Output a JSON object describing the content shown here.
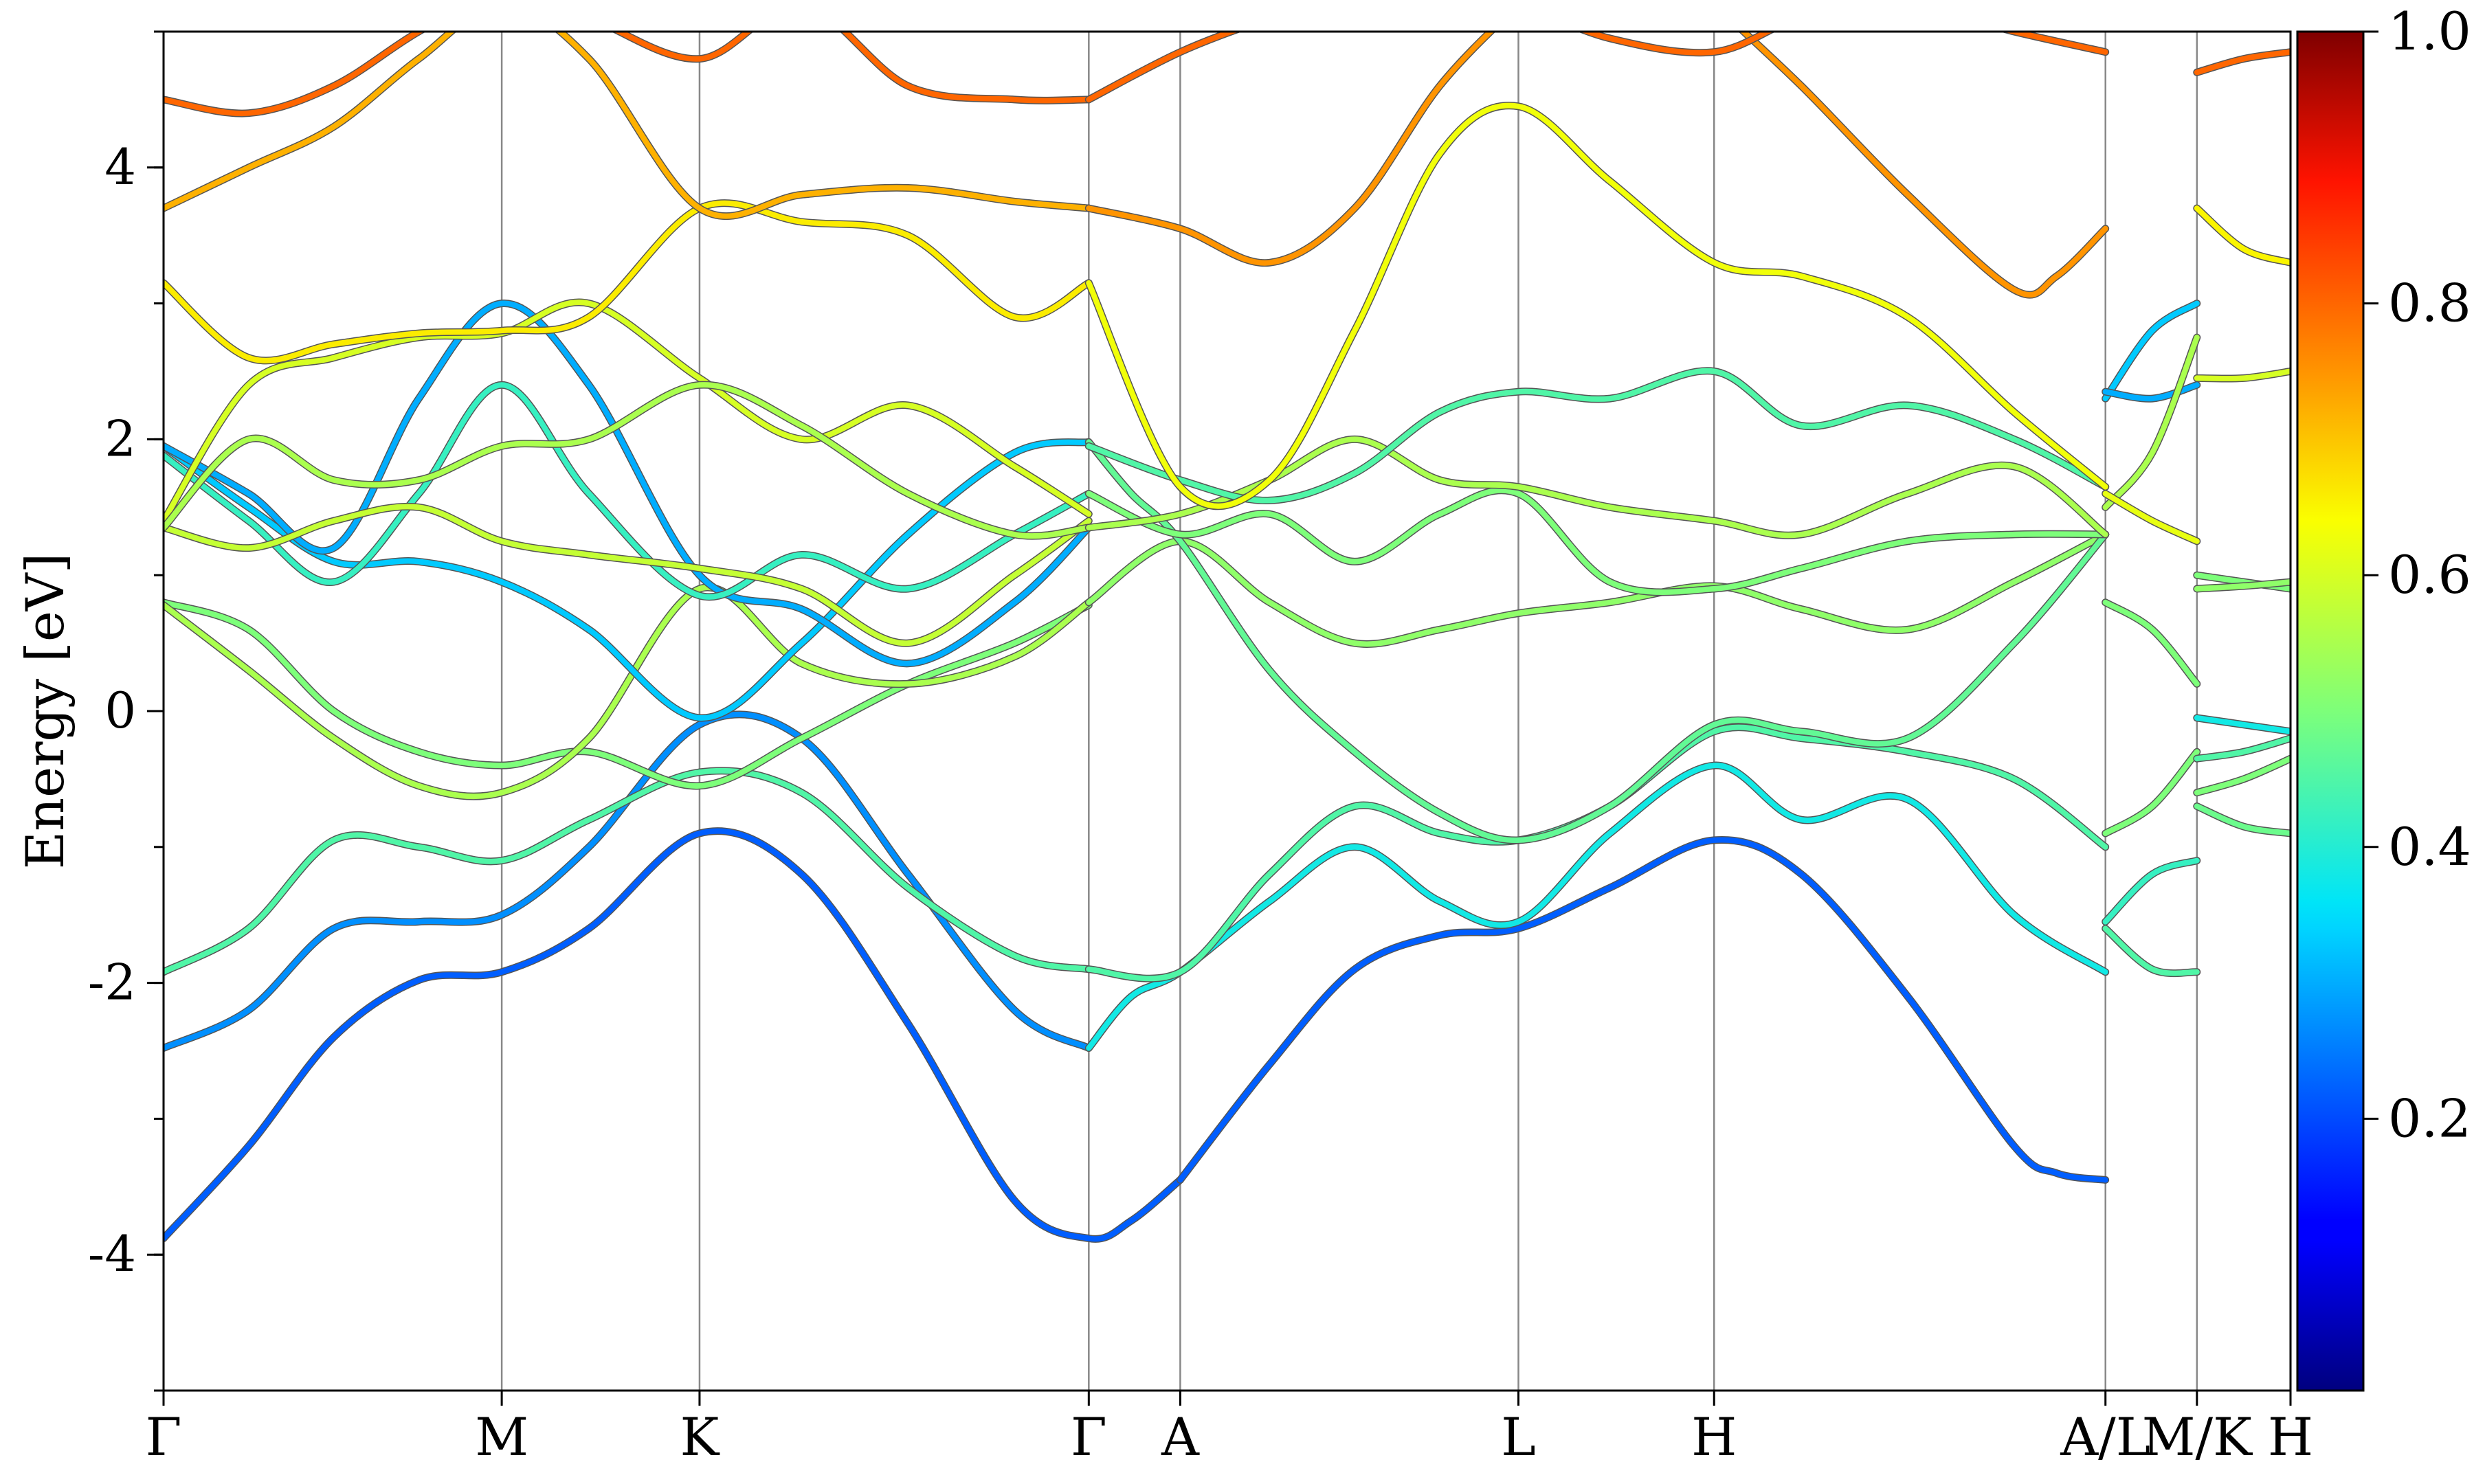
{
  "chart_data": {
    "type": "line",
    "title": "",
    "xlabel": "",
    "ylabel": "Energy [eV]",
    "ylim": [
      -5,
      5
    ],
    "yticks": [
      -4,
      -2,
      0,
      2,
      4
    ],
    "ytick_labels": [
      "-4",
      "-2",
      "0",
      "2",
      "4"
    ],
    "xlim": [
      0,
      100
    ],
    "kpoints": [
      {
        "label": "Γ",
        "x": 0
      },
      {
        "label": "M",
        "x": 15.9
      },
      {
        "label": "K",
        "x": 25.2
      },
      {
        "label": "Γ",
        "x": 43.5
      },
      {
        "label": "A",
        "x": 47.8
      },
      {
        "label": "L",
        "x": 63.7
      },
      {
        "label": "H",
        "x": 72.9
      },
      {
        "label": "A/L",
        "x": 91.3
      },
      {
        "label": "M/K",
        "x": 95.6
      },
      {
        "label": "H",
        "x": 100
      }
    ],
    "colorbar": {
      "min": 0.0,
      "max": 1.0,
      "ticks": [
        0.2,
        0.4,
        0.6,
        0.8,
        1.0
      ],
      "tick_labels": [
        "0.2",
        "0.4",
        "0.6",
        "0.8",
        "1.0"
      ],
      "colormap": "jet"
    },
    "grid": false,
    "series": [
      {
        "x": [
          0,
          4,
          8,
          12,
          15.9,
          20,
          25.2,
          30,
          35,
          40,
          43.5,
          45.5,
          47.8
        ],
        "y": [
          -3.88,
          -3.2,
          -2.4,
          -1.98,
          -1.92,
          -1.6,
          -0.9,
          -1.2,
          -2.3,
          -3.6,
          -3.88,
          -3.75,
          -3.45
        ],
        "c": 0.22
      },
      {
        "x": [
          47.8,
          52,
          56,
          60,
          63.7,
          68,
          72.9,
          77,
          82,
          87,
          89,
          91.3
        ],
        "y": [
          -3.45,
          -2.6,
          -1.9,
          -1.65,
          -1.6,
          -1.3,
          -0.95,
          -1.2,
          -2.1,
          -3.2,
          -3.4,
          -3.45
        ],
        "c": 0.22
      },
      {
        "x": [
          0,
          4,
          8,
          12,
          15.9,
          20,
          25.2,
          30,
          35,
          40,
          43.5
        ],
        "y": [
          -2.48,
          -2.2,
          -1.6,
          -1.55,
          -1.5,
          -1.0,
          -0.1,
          -0.2,
          -1.2,
          -2.2,
          -2.48
        ],
        "c": 0.27
      },
      {
        "x": [
          43.5,
          45.5,
          47.8,
          52,
          56,
          60,
          63.7,
          68,
          72.9,
          77,
          82,
          87,
          91.3
        ],
        "y": [
          -2.48,
          -2.1,
          -1.92,
          -1.4,
          -1.0,
          -1.4,
          -1.55,
          -0.9,
          -0.4,
          -0.8,
          -0.65,
          -1.5,
          -1.92
        ],
        "c": 0.38
      },
      {
        "x": [
          0,
          4,
          8,
          12,
          15.9,
          20,
          25.2,
          30,
          35,
          40,
          43.5
        ],
        "y": [
          -1.92,
          -1.6,
          -0.95,
          -1.0,
          -1.1,
          -0.8,
          -0.45,
          -0.6,
          -1.3,
          -1.8,
          -1.9
        ],
        "c": 0.45
      },
      {
        "x": [
          43.5,
          47.8,
          52,
          56,
          60,
          63.7,
          68,
          72.9,
          77,
          82,
          87,
          91.3
        ],
        "y": [
          -1.9,
          -1.92,
          -1.2,
          -0.7,
          -0.9,
          -0.95,
          -0.7,
          -0.15,
          -0.2,
          -0.3,
          -0.5,
          -1.0
        ],
        "c": 0.45
      },
      {
        "x": [
          0,
          4,
          8,
          12,
          15.9,
          20,
          25.2,
          30,
          35,
          40,
          43.5
        ],
        "y": [
          0.8,
          0.6,
          0.0,
          -0.3,
          -0.4,
          -0.3,
          -0.55,
          -0.2,
          0.2,
          0.5,
          0.78
        ],
        "c": 0.5
      },
      {
        "x": [
          0,
          4,
          8,
          12,
          15.9,
          20,
          25.2,
          30,
          35,
          40,
          43.5
        ],
        "y": [
          0.78,
          0.3,
          -0.2,
          -0.55,
          -0.6,
          -0.2,
          0.9,
          0.35,
          0.2,
          0.4,
          0.8
        ],
        "c": 0.55
      },
      {
        "x": [
          43.5,
          47.8,
          52,
          56,
          60,
          63.7,
          68,
          72.9,
          77,
          82,
          87,
          91.3
        ],
        "y": [
          0.8,
          1.25,
          0.8,
          0.5,
          0.6,
          0.72,
          0.8,
          0.92,
          0.75,
          0.6,
          0.95,
          1.3
        ],
        "c": 0.52
      },
      {
        "x": [
          0,
          4,
          8,
          12,
          15.9,
          20,
          25.2,
          30,
          35,
          40,
          43.5
        ],
        "y": [
          1.95,
          1.5,
          1.1,
          1.1,
          0.95,
          0.6,
          -0.05,
          0.5,
          1.3,
          1.9,
          1.98
        ],
        "c": 0.33
      },
      {
        "x": [
          43.5,
          45.5,
          47.8,
          52,
          56,
          60,
          63.7,
          68,
          72.9,
          77,
          82,
          87,
          91.3
        ],
        "y": [
          1.98,
          1.6,
          1.25,
          0.3,
          -0.3,
          -0.75,
          -0.95,
          -0.7,
          -0.1,
          -0.15,
          -0.2,
          0.5,
          1.3
        ],
        "c": 0.47
      },
      {
        "x": [
          0,
          4,
          8,
          12,
          15.9,
          20,
          25.2,
          30,
          35,
          40,
          43.5
        ],
        "y": [
          1.95,
          1.6,
          1.2,
          2.3,
          3.0,
          2.4,
          1.0,
          0.75,
          0.35,
          0.8,
          1.35
        ],
        "c": 0.3
      },
      {
        "x": [
          0,
          4,
          8,
          12,
          15.9,
          20,
          25.2,
          30,
          35,
          40,
          43.5
        ],
        "y": [
          1.88,
          1.4,
          0.95,
          1.6,
          2.4,
          1.6,
          0.85,
          1.15,
          0.9,
          1.3,
          1.6
        ],
        "c": 0.42
      },
      {
        "x": [
          43.5,
          47.8,
          52,
          56,
          60,
          63.7,
          68,
          72.9,
          77,
          82,
          87,
          91.3
        ],
        "y": [
          1.6,
          1.3,
          1.45,
          1.1,
          1.45,
          1.6,
          0.95,
          0.9,
          1.05,
          1.25,
          1.3,
          1.3
        ],
        "c": 0.5
      },
      {
        "x": [
          0,
          4,
          8,
          12,
          15.9,
          20,
          25.2,
          30,
          35,
          40,
          43.5
        ],
        "y": [
          1.35,
          1.2,
          1.4,
          1.5,
          1.25,
          1.15,
          1.05,
          0.9,
          0.5,
          1.0,
          1.4
        ],
        "c": 0.58
      },
      {
        "x": [
          0,
          4,
          8,
          12,
          15.9,
          20,
          25.2,
          30,
          35,
          40,
          43.5
        ],
        "y": [
          1.4,
          2.4,
          2.6,
          2.75,
          2.78,
          3.0,
          2.45,
          2.0,
          2.25,
          1.8,
          1.45
        ],
        "c": 0.6
      },
      {
        "x": [
          0,
          4,
          8,
          12,
          15.9,
          20,
          25.2,
          30,
          35,
          40,
          43.5
        ],
        "y": [
          1.35,
          2.0,
          1.7,
          1.7,
          1.95,
          2.0,
          2.4,
          2.1,
          1.6,
          1.3,
          1.35
        ],
        "c": 0.55
      },
      {
        "x": [
          43.5,
          47.8,
          52,
          56,
          60,
          63.7,
          68,
          72.9,
          77,
          82,
          87,
          91.3
        ],
        "y": [
          1.35,
          1.45,
          1.7,
          2.0,
          1.7,
          1.65,
          1.5,
          1.4,
          1.3,
          1.6,
          1.8,
          1.3
        ],
        "c": 0.55
      },
      {
        "x": [
          43.5,
          47.8,
          52,
          56,
          60,
          63.7,
          68,
          72.9,
          77,
          82,
          87,
          91.3
        ],
        "y": [
          1.95,
          1.7,
          1.55,
          1.75,
          2.2,
          2.35,
          2.3,
          2.5,
          2.1,
          2.25,
          2.0,
          1.65
        ],
        "c": 0.45
      },
      {
        "x": [
          0,
          4,
          8,
          12,
          15.9,
          20,
          25.2,
          30,
          35,
          40,
          43.5
        ],
        "y": [
          3.15,
          2.6,
          2.7,
          2.78,
          2.8,
          2.9,
          3.7,
          3.6,
          3.5,
          2.9,
          3.15
        ],
        "c": 0.66
      },
      {
        "x": [
          43.5,
          47.8,
          52,
          56,
          60,
          63.7,
          68,
          72.9,
          77,
          82,
          87,
          91.3
        ],
        "y": [
          3.15,
          1.65,
          1.7,
          2.8,
          4.1,
          4.45,
          3.9,
          3.3,
          3.2,
          2.9,
          2.2,
          1.65
        ],
        "c": 0.63
      },
      {
        "x": [
          0,
          4,
          8,
          12,
          15.9,
          20,
          25.2,
          30,
          35,
          40,
          43.5
        ],
        "y": [
          3.7,
          4.0,
          4.3,
          4.8,
          5.2,
          4.8,
          3.7,
          3.8,
          3.85,
          3.75,
          3.7
        ],
        "c": 0.72
      },
      {
        "x": [
          43.5,
          47.8,
          52,
          56,
          60,
          63.7
        ],
        "y": [
          3.7,
          3.55,
          3.3,
          3.7,
          4.6,
          5.2
        ],
        "c": 0.75
      },
      {
        "x": [
          72.9,
          77,
          82,
          87,
          89,
          91.3
        ],
        "y": [
          5.2,
          4.6,
          3.8,
          3.1,
          3.2,
          3.55
        ],
        "c": 0.75
      },
      {
        "x": [
          0,
          4,
          8,
          12,
          15.9,
          20,
          25.2,
          30,
          35,
          40,
          43.5
        ],
        "y": [
          4.5,
          4.4,
          4.6,
          5.0,
          5.3,
          5.1,
          4.8,
          5.2,
          4.6,
          4.5,
          4.5
        ],
        "c": 0.8
      },
      {
        "x": [
          43.5,
          47.8,
          52,
          56,
          60,
          63.7,
          68,
          72.9,
          77,
          82,
          87,
          91.3
        ],
        "y": [
          4.5,
          4.85,
          5.1,
          5.3,
          5.3,
          5.2,
          4.95,
          4.85,
          5.1,
          5.2,
          5.0,
          4.85
        ],
        "c": 0.8
      },
      {
        "x": [
          91.3,
          93.5,
          95.6
        ],
        "y": [
          2.3,
          2.8,
          3.0
        ],
        "c": 0.33
      },
      {
        "x": [
          91.3,
          93.5,
          95.6
        ],
        "y": [
          2.35,
          2.3,
          2.4
        ],
        "c": 0.3
      },
      {
        "x": [
          91.3,
          93.5,
          95.6
        ],
        "y": [
          1.5,
          1.9,
          2.75
        ],
        "c": 0.55
      },
      {
        "x": [
          91.3,
          93.5,
          95.6
        ],
        "y": [
          1.6,
          1.4,
          1.25
        ],
        "c": 0.62
      },
      {
        "x": [
          91.3,
          93.5,
          95.6
        ],
        "y": [
          0.8,
          0.6,
          0.2
        ],
        "c": 0.5
      },
      {
        "x": [
          91.3,
          93.5,
          95.6
        ],
        "y": [
          -0.9,
          -0.7,
          -0.3
        ],
        "c": 0.5
      },
      {
        "x": [
          91.3,
          93.5,
          95.6
        ],
        "y": [
          -1.55,
          -1.2,
          -1.1
        ],
        "c": 0.42
      },
      {
        "x": [
          91.3,
          93.5,
          95.6
        ],
        "y": [
          -1.6,
          -1.9,
          -1.92
        ],
        "c": 0.45
      },
      {
        "x": [
          95.6,
          97.8,
          100
        ],
        "y": [
          3.7,
          3.4,
          3.3
        ],
        "c": 0.65
      },
      {
        "x": [
          95.6,
          97.8,
          100
        ],
        "y": [
          2.45,
          2.45,
          2.5
        ],
        "c": 0.6
      },
      {
        "x": [
          95.6,
          97.8,
          100
        ],
        "y": [
          1.0,
          0.95,
          0.9
        ],
        "c": 0.5
      },
      {
        "x": [
          95.6,
          97.8,
          100
        ],
        "y": [
          0.9,
          0.92,
          0.95
        ],
        "c": 0.52
      },
      {
        "x": [
          95.6,
          97.8,
          100
        ],
        "y": [
          -0.05,
          -0.1,
          -0.15
        ],
        "c": 0.38
      },
      {
        "x": [
          95.6,
          97.8,
          100
        ],
        "y": [
          -0.35,
          -0.3,
          -0.2
        ],
        "c": 0.45
      },
      {
        "x": [
          95.6,
          97.8,
          100
        ],
        "y": [
          -0.6,
          -0.5,
          -0.35
        ],
        "c": 0.5
      },
      {
        "x": [
          95.6,
          97.8,
          100
        ],
        "y": [
          -0.7,
          -0.85,
          -0.9
        ],
        "c": 0.48
      },
      {
        "x": [
          95.6,
          97.8,
          100
        ],
        "y": [
          4.7,
          4.8,
          4.85
        ],
        "c": 0.8
      }
    ]
  }
}
